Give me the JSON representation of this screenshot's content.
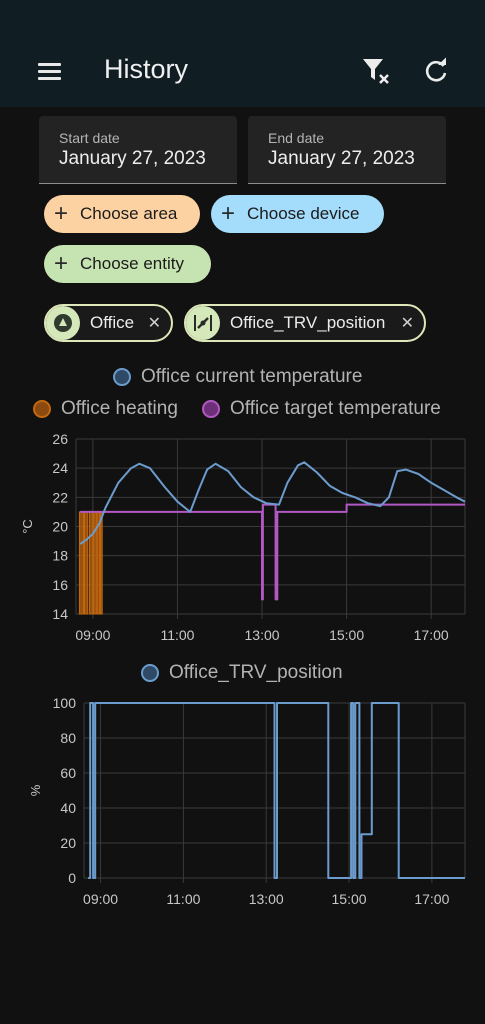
{
  "header": {
    "title": "History"
  },
  "dates": {
    "start_label": "Start date",
    "start_value": "January 27, 2023",
    "end_label": "End date",
    "end_value": "January 27, 2023"
  },
  "targets": {
    "area": "Choose area",
    "device": "Choose device",
    "entity": "Choose entity"
  },
  "selected": [
    {
      "label": "Office",
      "icon": "area-icon"
    },
    {
      "label": "Office_TRV_position",
      "icon": "valve-icon"
    }
  ],
  "colors": {
    "area_pill": "#fdd2a2",
    "device_pill": "#a4dcfb",
    "entity_pill": "#c6e4b1",
    "current_temp": "#6b9ccd",
    "heating": "#c4680f",
    "target_temp": "#b258c2",
    "trv": "#6b9ccd"
  },
  "chart_data": [
    {
      "type": "line",
      "legend": [
        "Office current temperature",
        "Office heating",
        "Office target temperature"
      ],
      "ylabel": "°C",
      "ylim": [
        14,
        26
      ],
      "yticks": [
        "14",
        "16",
        "18",
        "20",
        "22",
        "24",
        "26"
      ],
      "xticks": [
        "09:00",
        "11:00",
        "13:00",
        "15:00",
        "17:00"
      ],
      "x_range_hours": [
        8.6,
        17.8
      ],
      "series": [
        {
          "name": "Office current temperature",
          "x": [
            8.7,
            8.85,
            9.0,
            9.15,
            9.3,
            9.6,
            9.9,
            10.1,
            10.35,
            10.7,
            11.0,
            11.3,
            11.5,
            11.7,
            11.9,
            12.2,
            12.5,
            12.8,
            13.1,
            13.4,
            13.6,
            13.85,
            14.0,
            14.3,
            14.6,
            14.9,
            15.2,
            15.5,
            15.8,
            16.0,
            16.2,
            16.4,
            16.7,
            17.0,
            17.3,
            17.6,
            17.8
          ],
          "y": [
            18.8,
            19.1,
            19.5,
            20.2,
            21.3,
            23.0,
            24.0,
            24.3,
            24.0,
            22.7,
            21.7,
            21.0,
            22.5,
            23.9,
            24.3,
            23.8,
            22.7,
            22.0,
            21.6,
            21.5,
            23.0,
            24.2,
            24.4,
            23.7,
            22.8,
            22.3,
            22.0,
            21.6,
            21.4,
            22.0,
            23.8,
            23.9,
            23.6,
            23.0,
            22.5,
            22.0,
            21.7
          ]
        },
        {
          "name": "Office target temperature",
          "x": [
            8.7,
            13.0,
            13.0,
            13.02,
            13.02,
            13.32,
            13.32,
            13.36,
            13.36,
            15.0,
            15.0,
            17.8
          ],
          "y": [
            21.0,
            21.0,
            15.0,
            15.0,
            21.5,
            21.5,
            15.0,
            15.0,
            21.0,
            21.0,
            21.5,
            21.5
          ]
        },
        {
          "name": "Office heating",
          "on_intervals": [
            [
              8.68,
              8.78
            ],
            [
              8.8,
              8.88
            ],
            [
              8.92,
              9.0
            ],
            [
              9.02,
              9.08
            ],
            [
              9.1,
              9.16
            ],
            [
              9.18,
              9.22
            ]
          ],
          "on_level": 21
        }
      ]
    },
    {
      "type": "line",
      "legend": [
        "Office_TRV_position"
      ],
      "ylabel": "%",
      "ylim": [
        0,
        100
      ],
      "yticks": [
        "0",
        "20",
        "40",
        "60",
        "80",
        "100"
      ],
      "xticks": [
        "09:00",
        "11:00",
        "13:00",
        "15:00",
        "17:00"
      ],
      "x_range_hours": [
        8.6,
        17.8
      ],
      "series": [
        {
          "name": "Office_TRV_position",
          "x": [
            8.7,
            8.75,
            8.75,
            8.82,
            8.82,
            8.87,
            8.87,
            8.93,
            8.93,
            13.2,
            13.2,
            13.26,
            13.26,
            13.38,
            13.38,
            14.5,
            14.5,
            15.05,
            15.05,
            15.1,
            15.1,
            15.15,
            15.15,
            15.25,
            15.25,
            15.3,
            15.3,
            15.55,
            15.55,
            16.2,
            16.2,
            17.8
          ],
          "y": [
            0,
            0,
            100,
            100,
            0,
            0,
            100,
            100,
            100,
            100,
            0,
            0,
            100,
            100,
            100,
            100,
            0,
            0,
            100,
            100,
            0,
            0,
            100,
            100,
            0,
            0,
            25,
            25,
            100,
            100,
            0,
            0
          ]
        }
      ]
    }
  ]
}
